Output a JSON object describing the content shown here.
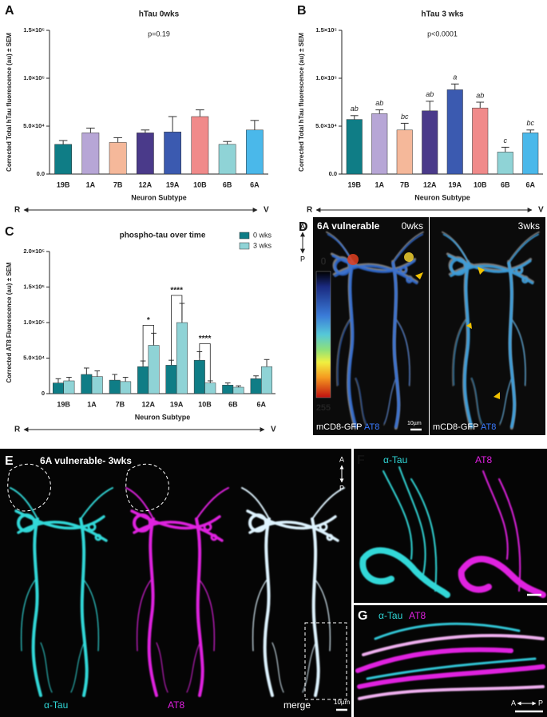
{
  "chart_data": [
    {
      "type": "bar",
      "panel": "A",
      "title": "hTau 0wks",
      "subtitle": "p=0.19",
      "y_label": "Corrected Total hTau fluorescence (au) ± SEM",
      "x_label": "Neuron Subtype",
      "axis_arrow": {
        "left": "R",
        "right": "V"
      },
      "categories": [
        "19B",
        "1A",
        "7B",
        "12A",
        "19A",
        "10B",
        "6B",
        "6A"
      ],
      "values": [
        31000,
        43000,
        33000,
        43000,
        44000,
        60000,
        31000,
        46000
      ],
      "errors": [
        4000,
        5000,
        5000,
        3000,
        16000,
        7000,
        3000,
        10000
      ],
      "colors": [
        "#0f7d86",
        "#b7a6d6",
        "#f5b89a",
        "#4a3a8a",
        "#3b5ab0",
        "#f08a8a",
        "#8fd3d6",
        "#4ab8ea"
      ],
      "ylim": [
        0,
        150000
      ],
      "yticks": [
        {
          "value": 0,
          "label": "0.0"
        },
        {
          "value": 50000,
          "label": "5.0×10⁴"
        },
        {
          "value": 100000,
          "label": "1.0×10⁵"
        },
        {
          "value": 150000,
          "label": "1.5×10⁵"
        }
      ]
    },
    {
      "type": "bar",
      "panel": "B",
      "title": "hTau 3 wks",
      "subtitle": "p<0.0001",
      "y_label": "Corrected Total hTau fluorescence (au) ± SEM",
      "x_label": "Neuron Subtype",
      "axis_arrow": {
        "left": "R",
        "right": "V"
      },
      "categories": [
        "19B",
        "1A",
        "7B",
        "12A",
        "19A",
        "10B",
        "6B",
        "6A"
      ],
      "values": [
        57000,
        63000,
        46000,
        66000,
        88000,
        69000,
        23000,
        43000
      ],
      "errors": [
        4000,
        4000,
        7000,
        10000,
        6000,
        6000,
        5000,
        3000
      ],
      "letters": [
        "ab",
        "ab",
        "bc",
        "ab",
        "a",
        "ab",
        "c",
        "bc"
      ],
      "colors": [
        "#0f7d86",
        "#b7a6d6",
        "#f5b89a",
        "#4a3a8a",
        "#3b5ab0",
        "#f08a8a",
        "#8fd3d6",
        "#4ab8ea"
      ],
      "ylim": [
        0,
        150000
      ],
      "yticks": [
        {
          "value": 0,
          "label": "0.0"
        },
        {
          "value": 50000,
          "label": "5.0×10⁴"
        },
        {
          "value": 100000,
          "label": "1.0×10⁵"
        },
        {
          "value": 150000,
          "label": "1.5×10⁵"
        }
      ]
    },
    {
      "type": "bar",
      "panel": "C",
      "title": "phospho-tau over time",
      "y_label": "Corrected AT8 Fluorescence (au) ± SEM",
      "x_label": "Neuron Subtype",
      "axis_arrow": {
        "left": "R",
        "right": "V"
      },
      "categories": [
        "19B",
        "1A",
        "7B",
        "12A",
        "19A",
        "10B",
        "6B",
        "6A"
      ],
      "series": [
        {
          "name": "0 wks",
          "color": "#0f7d86",
          "values": [
            15000,
            27000,
            19000,
            38000,
            40000,
            47000,
            12000,
            21000
          ],
          "errors": [
            6000,
            9000,
            8000,
            8000,
            7000,
            12000,
            3000,
            4000
          ]
        },
        {
          "name": "3 wks",
          "color": "#8fd3d6",
          "values": [
            18000,
            24000,
            17000,
            68000,
            100000,
            15000,
            9000,
            38000
          ],
          "errors": [
            5000,
            8000,
            6000,
            17000,
            27000,
            3000,
            2000,
            10000
          ]
        }
      ],
      "significance": [
        null,
        null,
        null,
        "*",
        "****",
        "****",
        null,
        null
      ],
      "ylim": [
        0,
        200000
      ],
      "yticks": [
        0,
        {
          "value": 50000,
          "label": "5.0×10⁴"
        },
        {
          "value": 100000,
          "label": "1.0×10⁵"
        },
        {
          "value": 150000,
          "label": "1.5×10⁵"
        },
        {
          "value": 200000,
          "label": "2.0×10⁵"
        }
      ]
    }
  ],
  "images": {
    "D": {
      "panel": "D",
      "orient_top": "A",
      "orient_bottom": "P",
      "title": "6A vulnerable",
      "time_left": "0wks",
      "time_right": "3wks",
      "colorbar_ticks": [
        0,
        255
      ],
      "channel_left_1": "mCD8-GFP",
      "channel_left_2": "AT8",
      "channel_right_1": "mCD8-GFP",
      "channel_right_2": "AT8",
      "scalebar": "10µm"
    },
    "E": {
      "panel": "E",
      "title": "6A vulnerable- 3wks",
      "orient_top": "A",
      "orient_bottom": "P",
      "channel_1": "α-Tau",
      "channel_2": "AT8",
      "channel_3": "merge",
      "scalebar": "10µm"
    },
    "F": {
      "panel": "F",
      "channel_1": "α-Tau",
      "channel_2": "AT8"
    },
    "G": {
      "panel": "G",
      "channel_1": "α-Tau",
      "channel_2": "AT8",
      "orient_left": "A",
      "orient_right": "P"
    }
  }
}
